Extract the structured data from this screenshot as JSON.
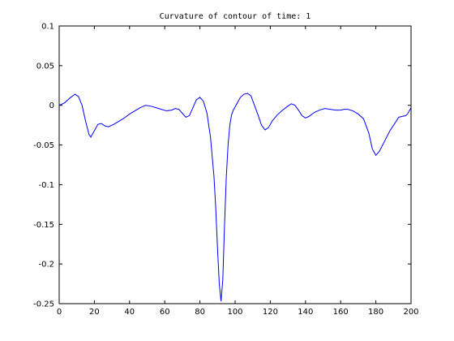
{
  "chart_data": {
    "type": "line",
    "title": "Curvature of contour of time: 1",
    "xlabel": "",
    "ylabel": "",
    "xlim": [
      0,
      200
    ],
    "ylim": [
      -0.25,
      0.1
    ],
    "grid": false,
    "x_ticks": [
      0,
      20,
      40,
      60,
      80,
      100,
      120,
      140,
      160,
      180,
      200
    ],
    "x_tick_labels": [
      "0",
      "20",
      "40",
      "60",
      "80",
      "100",
      "120",
      "140",
      "160",
      "180",
      "200"
    ],
    "y_ticks": [
      -0.25,
      -0.2,
      -0.15,
      -0.1,
      -0.05,
      0,
      0.05,
      0.1
    ],
    "y_tick_labels": [
      "-0.25",
      "-0.2",
      "-0.15",
      "-0.1",
      "-0.05",
      "0",
      "0.05",
      "0.1"
    ],
    "series": [
      {
        "color": "#0000ff",
        "points": [
          [
            0,
            0.0
          ],
          [
            3,
            0.003
          ],
          [
            6,
            0.009
          ],
          [
            9,
            0.014
          ],
          [
            11,
            0.011
          ],
          [
            13,
            0.0
          ],
          [
            15,
            -0.02
          ],
          [
            17,
            -0.037
          ],
          [
            18,
            -0.04
          ],
          [
            20,
            -0.032
          ],
          [
            22,
            -0.024
          ],
          [
            24,
            -0.023
          ],
          [
            26,
            -0.026
          ],
          [
            28,
            -0.027
          ],
          [
            31,
            -0.024
          ],
          [
            34,
            -0.02
          ],
          [
            37,
            -0.016
          ],
          [
            40,
            -0.011
          ],
          [
            43,
            -0.007
          ],
          [
            46,
            -0.003
          ],
          [
            49,
            0.0
          ],
          [
            52,
            -0.001
          ],
          [
            55,
            -0.003
          ],
          [
            58,
            -0.005
          ],
          [
            61,
            -0.007
          ],
          [
            64,
            -0.006
          ],
          [
            66,
            -0.004
          ],
          [
            68,
            -0.005
          ],
          [
            70,
            -0.01
          ],
          [
            72,
            -0.015
          ],
          [
            74,
            -0.013
          ],
          [
            76,
            -0.003
          ],
          [
            78,
            0.007
          ],
          [
            80,
            0.01
          ],
          [
            82,
            0.005
          ],
          [
            84,
            -0.01
          ],
          [
            86,
            -0.04
          ],
          [
            88,
            -0.09
          ],
          [
            89,
            -0.13
          ],
          [
            90,
            -0.18
          ],
          [
            91,
            -0.225
          ],
          [
            92,
            -0.247
          ],
          [
            93,
            -0.22
          ],
          [
            94,
            -0.15
          ],
          [
            95,
            -0.09
          ],
          [
            96,
            -0.05
          ],
          [
            97,
            -0.025
          ],
          [
            98,
            -0.012
          ],
          [
            99,
            -0.006
          ],
          [
            101,
            0.002
          ],
          [
            103,
            0.01
          ],
          [
            105,
            0.014
          ],
          [
            107,
            0.015
          ],
          [
            109,
            0.012
          ],
          [
            111,
            0.0
          ],
          [
            113,
            -0.012
          ],
          [
            115,
            -0.025
          ],
          [
            117,
            -0.031
          ],
          [
            119,
            -0.028
          ],
          [
            121,
            -0.02
          ],
          [
            124,
            -0.012
          ],
          [
            127,
            -0.006
          ],
          [
            130,
            -0.001
          ],
          [
            132,
            0.002
          ],
          [
            134,
            0.0
          ],
          [
            136,
            -0.006
          ],
          [
            138,
            -0.013
          ],
          [
            140,
            -0.016
          ],
          [
            142,
            -0.014
          ],
          [
            145,
            -0.009
          ],
          [
            148,
            -0.006
          ],
          [
            151,
            -0.004
          ],
          [
            154,
            -0.005
          ],
          [
            157,
            -0.006
          ],
          [
            160,
            -0.006
          ],
          [
            162,
            -0.005
          ],
          [
            164,
            -0.005
          ],
          [
            167,
            -0.007
          ],
          [
            170,
            -0.011
          ],
          [
            173,
            -0.017
          ],
          [
            176,
            -0.035
          ],
          [
            178,
            -0.055
          ],
          [
            180,
            -0.063
          ],
          [
            182,
            -0.058
          ],
          [
            185,
            -0.045
          ],
          [
            188,
            -0.032
          ],
          [
            191,
            -0.022
          ],
          [
            193,
            -0.015
          ],
          [
            195,
            -0.014
          ],
          [
            197,
            -0.013
          ],
          [
            198,
            -0.011
          ],
          [
            200,
            -0.003
          ]
        ]
      }
    ]
  }
}
